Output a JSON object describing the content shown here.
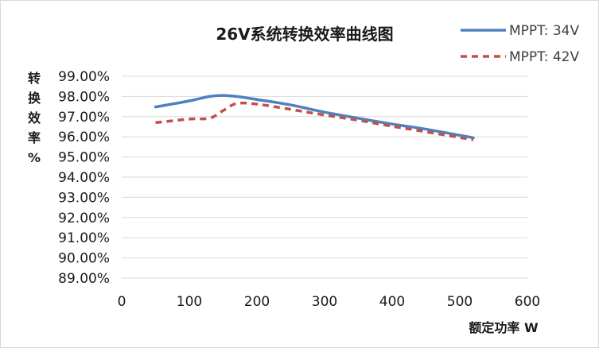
{
  "chart_data": {
    "type": "line",
    "title": "26V系统转换效率曲线图",
    "xlabel": "额定功率 W",
    "ylabel_chars": [
      "转",
      "换",
      "效",
      "率",
      "%"
    ],
    "xlim": [
      0,
      600
    ],
    "ylim": [
      89,
      99
    ],
    "x_ticks": [
      0,
      100,
      200,
      300,
      400,
      500,
      600
    ],
    "x_tick_labels": [
      "0",
      "100",
      "200",
      "300",
      "400",
      "500",
      "600"
    ],
    "y_ticks": [
      99,
      98,
      97,
      96,
      95,
      94,
      93,
      92,
      91,
      90,
      89
    ],
    "y_tick_labels": [
      "99.00%",
      "98.00%",
      "97.00%",
      "96.00%",
      "95.00%",
      "94.00%",
      "93.00%",
      "92.00%",
      "91.00%",
      "90.00%",
      "89.00%"
    ],
    "grid": "horizontal",
    "legend_position": "top-right",
    "series": [
      {
        "name": "MPPT: 34V",
        "color": "#4f81bd",
        "style": "solid",
        "points": [
          [
            50,
            97.48
          ],
          [
            100,
            97.78
          ],
          [
            130,
            98.0
          ],
          [
            150,
            98.05
          ],
          [
            170,
            98.0
          ],
          [
            200,
            97.85
          ],
          [
            250,
            97.58
          ],
          [
            300,
            97.22
          ],
          [
            350,
            96.92
          ],
          [
            400,
            96.63
          ],
          [
            450,
            96.38
          ],
          [
            520,
            95.95
          ]
        ]
      },
      {
        "name": "MPPT: 42V",
        "color": "#c0504d",
        "style": "dashed",
        "points": [
          [
            50,
            96.7
          ],
          [
            100,
            96.88
          ],
          [
            130,
            96.92
          ],
          [
            150,
            97.3
          ],
          [
            170,
            97.65
          ],
          [
            200,
            97.62
          ],
          [
            250,
            97.36
          ],
          [
            300,
            97.08
          ],
          [
            350,
            96.82
          ],
          [
            400,
            96.52
          ],
          [
            450,
            96.25
          ],
          [
            520,
            95.85
          ]
        ]
      }
    ]
  }
}
